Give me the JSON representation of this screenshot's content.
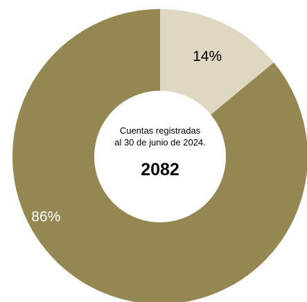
{
  "chart_data": {
    "type": "pie",
    "categories": [
      "",
      ""
    ],
    "values": [
      14,
      86
    ],
    "labels": [
      "14%",
      "86%"
    ],
    "colors": [
      "#DED8C3",
      "#958752"
    ],
    "label_colors": [
      "#000000",
      "#ffffff"
    ],
    "center_text": {
      "line1": "Cuentas registradas",
      "line2": "al 30 de junio de 2024.",
      "value": "2082"
    },
    "title": "",
    "legend": "none"
  }
}
